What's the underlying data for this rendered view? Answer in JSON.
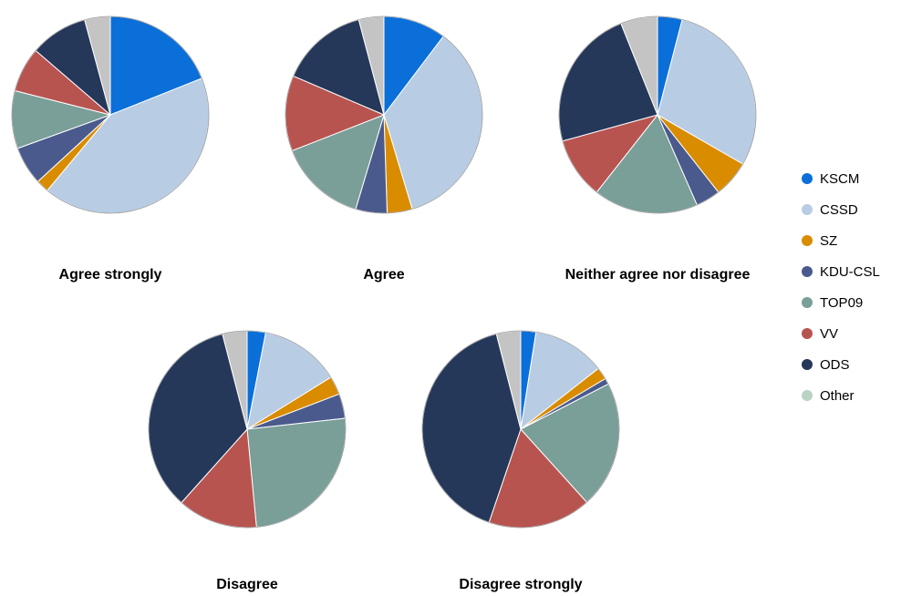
{
  "chart_data": {
    "type": "pie",
    "legend_position": "right",
    "series": [
      {
        "name": "KSCM",
        "color": "#0a6fd8"
      },
      {
        "name": "CSSD",
        "color": "#b8cce4"
      },
      {
        "name": "SZ",
        "color": "#d98c00"
      },
      {
        "name": "KDU-CSL",
        "color": "#4a5a8c"
      },
      {
        "name": "TOP09",
        "color": "#7a9e98"
      },
      {
        "name": "VV",
        "color": "#b85450"
      },
      {
        "name": "ODS",
        "color": "#25385a"
      },
      {
        "name": "Other",
        "color": "#c4c4c4"
      }
    ],
    "legend_other_color": "#b9d3c3",
    "charts": [
      {
        "title": "Agree strongly",
        "values": [
          18,
          40,
          2,
          6,
          9,
          7,
          9,
          4
        ]
      },
      {
        "title": "Agree",
        "values": [
          10,
          34,
          4,
          5,
          14,
          12,
          14,
          4
        ]
      },
      {
        "title": "Neither agree nor disagree",
        "values": [
          4,
          29,
          6,
          4,
          17,
          10,
          23,
          6
        ]
      },
      {
        "title": "Disagree",
        "values": [
          3,
          13,
          3,
          4,
          25,
          13,
          34,
          4
        ]
      },
      {
        "title": "Disagree strongly",
        "values": [
          2.5,
          12,
          2,
          1,
          21,
          17,
          41,
          4
        ]
      }
    ]
  }
}
